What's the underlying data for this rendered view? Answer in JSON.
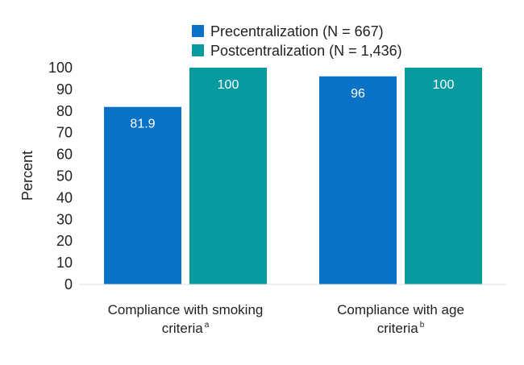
{
  "chart_data": {
    "type": "bar",
    "title": "",
    "ylabel": "Percent",
    "xlabel": "",
    "ylim": [
      0,
      100
    ],
    "yticks": [
      0,
      10,
      20,
      30,
      40,
      50,
      60,
      70,
      80,
      90,
      100
    ],
    "categories": [
      {
        "text": "Compliance with smoking",
        "text2": "criteria",
        "sup": "a"
      },
      {
        "text": "Compliance with age",
        "text2": "criteria",
        "sup": "b"
      }
    ],
    "series": [
      {
        "name": "Precentralization (N = 667)",
        "color": "#0a72c6",
        "values": [
          81.9,
          96
        ],
        "labels": [
          "81.9",
          "96"
        ]
      },
      {
        "name": "Postcentralization (N = 1,436)",
        "color": "#079a9f",
        "values": [
          100,
          100
        ],
        "labels": [
          "100",
          "100"
        ]
      }
    ],
    "legend": "top",
    "grid": false
  }
}
